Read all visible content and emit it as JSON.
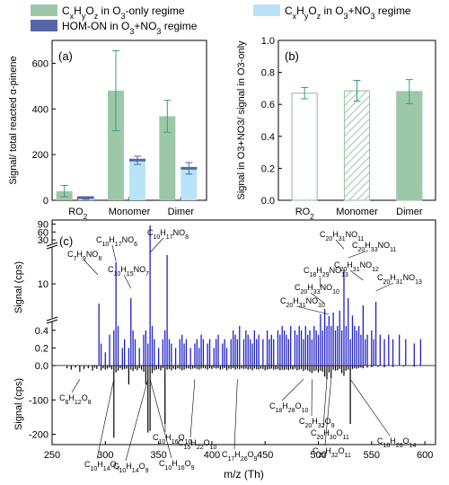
{
  "colors": {
    "green": "#9dc8a8",
    "lightblue": "#b9e3f8",
    "navy": "#5566aa",
    "blue": "#1f1fcc",
    "black": "#000000",
    "errgreen": "#3a9a8a"
  },
  "legend": [
    {
      "key": "o3",
      "label": "CxHyOz in O3-only regime",
      "color": "#9dc8a8"
    },
    {
      "key": "no3",
      "label": "CxHyOz in O3+NO3 regime",
      "color": "#b9e3f8"
    },
    {
      "key": "hom",
      "label": "HOM-ON in O3+NO3 regime",
      "color": "#5566aa"
    }
  ],
  "chart_data": [
    {
      "panel": "(a)",
      "type": "bar",
      "ylabel": "Signal/ total reacted α-pinene",
      "ylim": [
        0,
        700
      ],
      "yticks": [
        0,
        200,
        400,
        600
      ],
      "categories": [
        "RO2",
        "Monomer",
        "Dimer"
      ],
      "series": [
        {
          "name": "CxHyOz in O3-only regime",
          "values": [
            40,
            480,
            368
          ],
          "errors": [
            25,
            175,
            70
          ]
        },
        {
          "name": "CxHyOz in O3+NO3 regime",
          "values": [
            8,
            175,
            140
          ],
          "errors": [
            4,
            18,
            25
          ]
        },
        {
          "name": "HOM-ON in O3+NO3 regime",
          "values": [
            12,
            176,
            140
          ],
          "errors": [
            0,
            0,
            0
          ]
        }
      ]
    },
    {
      "panel": "(b)",
      "type": "bar",
      "ylabel": "Signal in O3+NO3/ signal in O3-only",
      "ylim": [
        0,
        1.0
      ],
      "yticks": [
        0.0,
        0.2,
        0.4,
        0.6,
        0.8,
        1.0
      ],
      "categories": [
        "RO2",
        "Monomer",
        "Dimer"
      ],
      "values": [
        0.67,
        0.685,
        0.68
      ],
      "errors": [
        0.035,
        0.065,
        0.075
      ],
      "styles": [
        "open",
        "hatched",
        "filled"
      ]
    },
    {
      "panel": "(c)",
      "type": "bar",
      "xlabel": "m/z (Th)",
      "ylabel_top": "Signal (cps)",
      "ylabel_bottom": "Signal (cps)",
      "xlim": [
        250,
        610
      ],
      "xticks": [
        250,
        300,
        350,
        400,
        450,
        500,
        550,
        600
      ],
      "top_ticks_low": [
        "0.0",
        "0.2",
        "0.4"
      ],
      "top_ticks_mid": [
        "10"
      ],
      "top_ticks_high": [
        "30",
        "60",
        "90"
      ],
      "bottom_ticks": [
        "0",
        "-100",
        "-200"
      ],
      "top_peaks": [
        [
          294,
          4.5
        ],
        [
          296,
          0.25
        ],
        [
          300,
          0.15
        ],
        [
          304,
          0.35
        ],
        [
          308,
          0.4
        ],
        [
          310,
          16
        ],
        [
          312,
          0.45
        ],
        [
          316,
          0.2
        ],
        [
          318,
          0.3
        ],
        [
          322,
          0.2
        ],
        [
          324,
          6
        ],
        [
          326,
          0.4
        ],
        [
          328,
          0.3
        ],
        [
          332,
          0.2
        ],
        [
          336,
          0.35
        ],
        [
          338,
          0.4
        ],
        [
          340,
          0.25
        ],
        [
          342,
          85
        ],
        [
          344,
          0.45
        ],
        [
          346,
          0.3
        ],
        [
          350,
          0.2
        ],
        [
          354,
          0.3
        ],
        [
          356,
          0.4
        ],
        [
          358,
          18
        ],
        [
          360,
          0.3
        ],
        [
          362,
          0.25
        ],
        [
          366,
          0.2
        ],
        [
          370,
          0.3
        ],
        [
          372,
          0.35
        ],
        [
          374,
          0.25
        ],
        [
          376,
          0.3
        ],
        [
          380,
          0.2
        ],
        [
          384,
          0.25
        ],
        [
          386,
          0.3
        ],
        [
          388,
          0.2
        ],
        [
          390,
          0.35
        ],
        [
          392,
          0.3
        ],
        [
          396,
          0.25
        ],
        [
          398,
          0.3
        ],
        [
          402,
          0.2
        ],
        [
          404,
          0.3
        ],
        [
          406,
          0.35
        ],
        [
          410,
          0.25
        ],
        [
          412,
          0.3
        ],
        [
          414,
          0.2
        ],
        [
          418,
          0.3
        ],
        [
          420,
          0.4
        ],
        [
          422,
          0.35
        ],
        [
          424,
          0.3
        ],
        [
          426,
          0.45
        ],
        [
          430,
          0.3
        ],
        [
          432,
          0.4
        ],
        [
          434,
          0.35
        ],
        [
          436,
          0.3
        ],
        [
          438,
          0.25
        ],
        [
          440,
          0.4
        ],
        [
          442,
          0.3
        ],
        [
          444,
          0.35
        ],
        [
          448,
          0.3
        ],
        [
          452,
          0.4
        ],
        [
          454,
          0.3
        ],
        [
          456,
          0.35
        ],
        [
          458,
          0.3
        ],
        [
          462,
          0.4
        ],
        [
          464,
          0.35
        ],
        [
          466,
          0.45
        ],
        [
          468,
          0.4
        ],
        [
          470,
          0.35
        ],
        [
          472,
          0.3
        ],
        [
          474,
          0.45
        ],
        [
          478,
          0.4
        ],
        [
          480,
          0.35
        ],
        [
          482,
          0.45
        ],
        [
          484,
          0.4
        ],
        [
          486,
          0.3
        ],
        [
          488,
          0.45
        ],
        [
          490,
          0.35
        ],
        [
          492,
          0.4
        ],
        [
          494,
          0.3
        ],
        [
          496,
          0.45
        ],
        [
          498,
          0.4
        ],
        [
          500,
          0.35
        ],
        [
          502,
          1.5
        ],
        [
          504,
          0.4
        ],
        [
          506,
          3
        ],
        [
          508,
          0.45
        ],
        [
          510,
          1
        ],
        [
          512,
          0.45
        ],
        [
          514,
          2
        ],
        [
          516,
          0.4
        ],
        [
          518,
          0.45
        ],
        [
          520,
          2.5
        ],
        [
          522,
          0.4
        ],
        [
          524,
          14
        ],
        [
          526,
          0.45
        ],
        [
          528,
          6
        ],
        [
          530,
          0.3
        ],
        [
          532,
          1.2
        ],
        [
          534,
          0.45
        ],
        [
          536,
          0.4
        ],
        [
          538,
          0.45
        ],
        [
          540,
          0.35
        ],
        [
          542,
          4
        ],
        [
          544,
          0.3
        ],
        [
          546,
          0.35
        ],
        [
          550,
          0.4
        ],
        [
          552,
          0.3
        ],
        [
          554,
          5
        ],
        [
          558,
          0.35
        ],
        [
          562,
          0.3
        ],
        [
          566,
          0.35
        ],
        [
          570,
          0.3
        ],
        [
          576,
          0.35
        ],
        [
          582,
          0.3
        ],
        [
          590,
          0.25
        ],
        [
          596,
          0.3
        ]
      ],
      "bottom_peaks": [
        [
          264,
          -8
        ],
        [
          268,
          -12
        ],
        [
          272,
          -6
        ],
        [
          276,
          -18
        ],
        [
          280,
          -10
        ],
        [
          284,
          -8
        ],
        [
          288,
          -15
        ],
        [
          290,
          -6
        ],
        [
          292,
          -10
        ],
        [
          296,
          -14
        ],
        [
          298,
          -8
        ],
        [
          300,
          -12
        ],
        [
          302,
          -9
        ],
        [
          304,
          -6
        ],
        [
          306,
          -11
        ],
        [
          308,
          -210
        ],
        [
          310,
          -20
        ],
        [
          312,
          -15
        ],
        [
          314,
          -8
        ],
        [
          316,
          -12
        ],
        [
          318,
          -10
        ],
        [
          320,
          -9
        ],
        [
          322,
          -55
        ],
        [
          324,
          -12
        ],
        [
          326,
          -16
        ],
        [
          328,
          -10
        ],
        [
          330,
          -14
        ],
        [
          332,
          -8
        ],
        [
          334,
          -12
        ],
        [
          336,
          -18
        ],
        [
          338,
          -55
        ],
        [
          340,
          -195
        ],
        [
          342,
          -190
        ],
        [
          344,
          -22
        ],
        [
          346,
          -14
        ],
        [
          348,
          -12
        ],
        [
          350,
          -10
        ],
        [
          352,
          -14
        ],
        [
          354,
          -8
        ],
        [
          356,
          -170
        ],
        [
          358,
          -12
        ],
        [
          360,
          -10
        ],
        [
          362,
          -14
        ],
        [
          364,
          -9
        ],
        [
          366,
          -12
        ],
        [
          368,
          -8
        ],
        [
          370,
          -10
        ],
        [
          372,
          -14
        ],
        [
          374,
          -12
        ],
        [
          376,
          -9
        ],
        [
          378,
          -8
        ],
        [
          380,
          -11
        ],
        [
          382,
          -9
        ],
        [
          384,
          -8
        ],
        [
          386,
          -10
        ],
        [
          388,
          -12
        ],
        [
          390,
          -9
        ],
        [
          392,
          -7
        ],
        [
          394,
          -9
        ],
        [
          396,
          -12
        ],
        [
          398,
          -8
        ],
        [
          400,
          -10
        ],
        [
          402,
          -7
        ],
        [
          404,
          -9
        ],
        [
          406,
          -8
        ],
        [
          408,
          -12
        ],
        [
          410,
          -10
        ],
        [
          412,
          -8
        ],
        [
          414,
          -14
        ],
        [
          416,
          -9
        ],
        [
          418,
          -10
        ],
        [
          420,
          -8
        ],
        [
          422,
          -12
        ],
        [
          424,
          -9
        ],
        [
          426,
          -11
        ],
        [
          428,
          -8
        ],
        [
          430,
          -10
        ],
        [
          432,
          -9
        ],
        [
          434,
          -12
        ],
        [
          436,
          -10
        ],
        [
          438,
          -14
        ],
        [
          440,
          -9
        ],
        [
          442,
          -11
        ],
        [
          444,
          -12
        ],
        [
          446,
          -9
        ],
        [
          448,
          -10
        ],
        [
          450,
          -14
        ],
        [
          452,
          -12
        ],
        [
          454,
          -10
        ],
        [
          456,
          -9
        ],
        [
          458,
          -12
        ],
        [
          460,
          -11
        ],
        [
          462,
          -10
        ],
        [
          464,
          -14
        ],
        [
          466,
          -12
        ],
        [
          468,
          -13
        ],
        [
          470,
          -11
        ],
        [
          472,
          -14
        ],
        [
          474,
          -10
        ],
        [
          476,
          -12
        ],
        [
          478,
          -9
        ],
        [
          480,
          -14
        ],
        [
          482,
          -12
        ],
        [
          484,
          -10
        ],
        [
          486,
          -16
        ],
        [
          488,
          -12
        ],
        [
          490,
          -14
        ],
        [
          492,
          -18
        ],
        [
          494,
          -22
        ],
        [
          496,
          -16
        ],
        [
          498,
          -14
        ],
        [
          500,
          -20
        ],
        [
          502,
          -15
        ],
        [
          504,
          -18
        ],
        [
          506,
          -32
        ],
        [
          508,
          -40
        ],
        [
          510,
          -20
        ],
        [
          512,
          -38
        ],
        [
          514,
          -12
        ],
        [
          516,
          -15
        ],
        [
          518,
          -14
        ],
        [
          520,
          -10
        ],
        [
          522,
          -22
        ],
        [
          524,
          -30
        ],
        [
          526,
          -15
        ],
        [
          528,
          -12
        ],
        [
          530,
          -170
        ],
        [
          532,
          -10
        ],
        [
          534,
          -8
        ],
        [
          536,
          -9
        ],
        [
          538,
          -7
        ],
        [
          540,
          -6
        ],
        [
          542,
          -8
        ],
        [
          546,
          -6
        ],
        [
          550,
          -5
        ],
        [
          556,
          -4
        ],
        [
          562,
          -5
        ],
        [
          570,
          -4
        ],
        [
          580,
          -3
        ],
        [
          590,
          -3
        ]
      ],
      "annotations_top": [
        {
          "base": "C",
          "subs": [
            "7",
            "H",
            "9",
            "NO",
            "8"
          ],
          "label": "C7H9NO8"
        },
        {
          "base": "C",
          "subs": [
            "10",
            "H",
            "17",
            "NO",
            "6"
          ],
          "label": "C10H17NO6"
        },
        {
          "base": "C",
          "subs": [
            "10",
            "H",
            "15",
            "NO",
            "7"
          ],
          "label": "C10H15NO7"
        },
        {
          "base": "C",
          "subs": [
            "10",
            "H",
            "17",
            "NO",
            "8"
          ],
          "label": "C10H17NO8"
        },
        {
          "base": "C",
          "subs": [
            "18",
            "H",
            "29",
            "NO",
            "13"
          ],
          "label": "C18H29NO13"
        },
        {
          "base": "C",
          "subs": [
            "20",
            "H",
            "31",
            "NO",
            "11"
          ],
          "label": "C20H31NO11"
        },
        {
          "base": "C",
          "subs": [
            "20",
            "H",
            "33",
            "NO",
            "11"
          ],
          "label": "C20H33NO11"
        },
        {
          "base": "C",
          "subs": [
            "20",
            "H",
            "33",
            "NO",
            "10"
          ],
          "label": "C20H33NO10"
        },
        {
          "base": "C",
          "subs": [
            "20",
            "H",
            "31",
            "NO",
            "10"
          ],
          "label": "C20H31NO10"
        },
        {
          "base": "C",
          "subs": [
            "20",
            "H",
            "31",
            "NO",
            "12"
          ],
          "label": "C20H31NO12"
        },
        {
          "base": "C",
          "subs": [
            "20",
            "H",
            "31",
            "NO",
            "13"
          ],
          "label": "C20H31NO13"
        }
      ],
      "annotations_bottom": [
        {
          "label": "C8H12O8"
        },
        {
          "label": "C10H14O7"
        },
        {
          "label": "C10H14O9"
        },
        {
          "label": "C10H16O9"
        },
        {
          "label": "C10H16O10"
        },
        {
          "label": "C15H22O10"
        },
        {
          "label": "C17H26O9"
        },
        {
          "label": "C18H28O10"
        },
        {
          "label": "C20H32O9"
        },
        {
          "label": "C20H30O11"
        },
        {
          "label": "C20H32O11"
        },
        {
          "label": "C18H28O14"
        }
      ]
    }
  ]
}
